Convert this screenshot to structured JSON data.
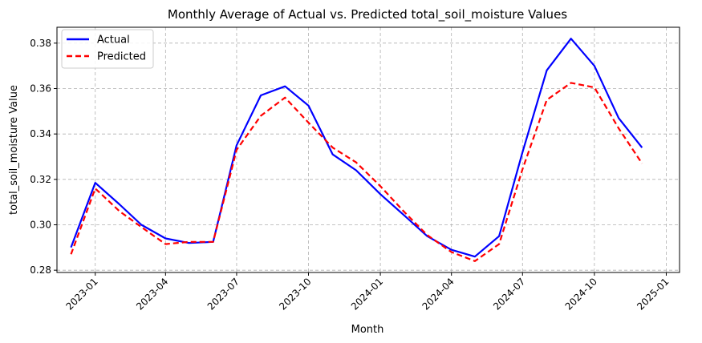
{
  "chart_data": {
    "type": "line",
    "title": "Monthly Average of Actual vs. Predicted total_soil_moisture Values",
    "xlabel": "Month",
    "ylabel": "total_soil_moisture Value",
    "x": [
      "2022-12",
      "2023-01",
      "2023-02",
      "2023-03",
      "2023-04",
      "2023-05",
      "2023-06",
      "2023-07",
      "2023-08",
      "2023-09",
      "2023-10",
      "2023-11",
      "2023-12",
      "2024-01",
      "2024-02",
      "2024-03",
      "2024-04",
      "2024-05",
      "2024-06",
      "2024-07",
      "2024-08",
      "2024-09",
      "2024-10",
      "2024-11",
      "2024-12"
    ],
    "series": [
      {
        "name": "Actual",
        "color": "#0000ff",
        "style": "solid",
        "values": [
          0.29,
          0.3185,
          0.309,
          0.3,
          0.294,
          0.292,
          0.2925,
          0.335,
          0.357,
          0.361,
          0.3525,
          0.331,
          0.324,
          0.3135,
          0.304,
          0.295,
          0.289,
          0.286,
          0.295,
          0.332,
          0.368,
          0.382,
          0.37,
          0.347,
          0.334
        ]
      },
      {
        "name": "Predicted",
        "color": "#ff0000",
        "style": "dashed",
        "values": [
          0.287,
          0.316,
          0.306,
          0.299,
          0.2915,
          0.2925,
          0.2925,
          0.333,
          0.348,
          0.356,
          0.345,
          0.334,
          0.3275,
          0.317,
          0.3055,
          0.2955,
          0.288,
          0.284,
          0.2915,
          0.3245,
          0.355,
          0.3625,
          0.3605,
          0.3425,
          0.327
        ]
      }
    ],
    "xticks": [
      {
        "label": "2023-01",
        "date": "2023-01-01"
      },
      {
        "label": "2023-04",
        "date": "2023-04-01"
      },
      {
        "label": "2023-07",
        "date": "2023-07-01"
      },
      {
        "label": "2023-10",
        "date": "2023-10-01"
      },
      {
        "label": "2024-01",
        "date": "2024-01-01"
      },
      {
        "label": "2024-04",
        "date": "2024-04-01"
      },
      {
        "label": "2024-07",
        "date": "2024-07-01"
      },
      {
        "label": "2024-10",
        "date": "2024-10-01"
      },
      {
        "label": "2025-01",
        "date": "2025-01-01"
      }
    ],
    "yticks": [
      0.28,
      0.3,
      0.32,
      0.34,
      0.36,
      0.38
    ],
    "ylim": [
      0.279,
      0.387
    ],
    "xlim": [
      "2022-11-13",
      "2025-01-18"
    ],
    "grid": true,
    "legend": "top-left"
  }
}
